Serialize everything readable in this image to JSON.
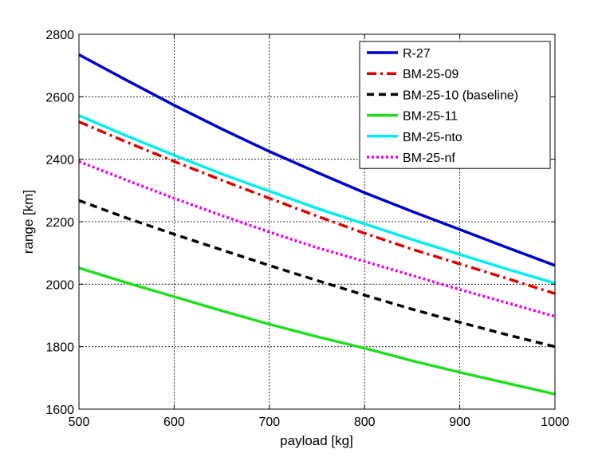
{
  "chart_data": {
    "type": "line",
    "xlabel": "payload [kg]",
    "ylabel": "range [km]",
    "xlim": [
      500,
      1000
    ],
    "ylim": [
      1600,
      2800
    ],
    "xticks": [
      500,
      600,
      700,
      800,
      900,
      1000
    ],
    "yticks": [
      1600,
      1800,
      2000,
      2200,
      2400,
      2600,
      2800
    ],
    "grid": true,
    "legend_position": "top-right",
    "series": [
      {
        "name": "R-27",
        "color": "#0000cc",
        "style": "solid",
        "x": [
          500,
          550,
          600,
          650,
          700,
          750,
          800,
          850,
          900,
          950,
          1000
        ],
        "y": [
          2735,
          2653,
          2573,
          2497,
          2425,
          2358,
          2293,
          2233,
          2175,
          2117,
          2060
        ]
      },
      {
        "name": "BM-25-09",
        "color": "#dd0000",
        "style": "dashdot",
        "x": [
          500,
          550,
          600,
          650,
          700,
          750,
          800,
          850,
          900,
          950,
          1000
        ],
        "y": [
          2520,
          2455,
          2393,
          2333,
          2275,
          2218,
          2163,
          2112,
          2065,
          2018,
          1970
        ]
      },
      {
        "name": "BM-25-10 (baseline)",
        "color": "#000000",
        "style": "dashed",
        "x": [
          500,
          550,
          600,
          650,
          700,
          750,
          800,
          850,
          900,
          950,
          1000
        ],
        "y": [
          2268,
          2212,
          2160,
          2110,
          2060,
          2012,
          1965,
          1920,
          1878,
          1838,
          1800
        ]
      },
      {
        "name": "BM-25-11",
        "color": "#22dd22",
        "style": "solid",
        "x": [
          500,
          550,
          600,
          650,
          700,
          750,
          800,
          850,
          900,
          950,
          1000
        ],
        "y": [
          2052,
          2005,
          1960,
          1915,
          1872,
          1832,
          1795,
          1755,
          1718,
          1683,
          1648
        ]
      },
      {
        "name": "BM-25-nto",
        "color": "#00eeee",
        "style": "solid",
        "x": [
          500,
          550,
          600,
          650,
          700,
          750,
          800,
          850,
          900,
          950,
          1000
        ],
        "y": [
          2540,
          2475,
          2413,
          2353,
          2298,
          2243,
          2193,
          2143,
          2095,
          2048,
          2003
        ]
      },
      {
        "name": "BM-25-nf",
        "color": "#ee00ee",
        "style": "dotted",
        "x": [
          500,
          550,
          600,
          650,
          700,
          750,
          800,
          850,
          900,
          950,
          1000
        ],
        "y": [
          2393,
          2333,
          2275,
          2220,
          2167,
          2117,
          2073,
          2028,
          1983,
          1940,
          1897
        ]
      }
    ]
  }
}
